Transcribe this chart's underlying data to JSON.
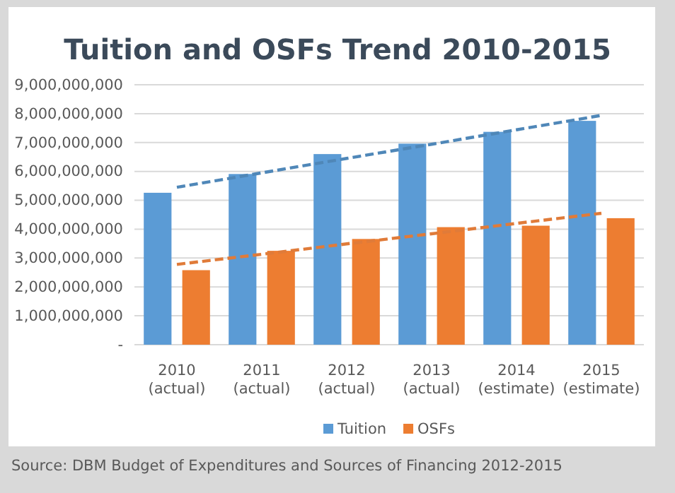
{
  "chart_data": {
    "type": "bar",
    "title": "Tuition and OSFs Trend 2010-2015",
    "categories": [
      "2010 (actual)",
      "2011 (actual)",
      "2012 (actual)",
      "2013 (actual)",
      "2014 (estimate)",
      "2015 (estimate)"
    ],
    "series": [
      {
        "name": "Tuition",
        "color": "#5b9bd5",
        "values": [
          5260000000,
          5910000000,
          6600000000,
          6960000000,
          7370000000,
          7750000000
        ]
      },
      {
        "name": "OSFs",
        "color": "#ed7d31",
        "values": [
          2580000000,
          3250000000,
          3660000000,
          4070000000,
          4120000000,
          4380000000
        ]
      },
      {
        "type": "line",
        "color": "#4f87b8",
        "line_style": "dashed",
        "values": [
          5450000000,
          5950000000,
          6450000000,
          6940000000,
          7440000000,
          7940000000
        ]
      },
      {
        "type": "line",
        "color": "#e07b39",
        "line_style": "dashed",
        "values": [
          2780000000,
          3130000000,
          3490000000,
          3840000000,
          4200000000,
          4550000000
        ]
      }
    ],
    "ylim": [
      0,
      9000000000
    ],
    "yticks": [
      {
        "value": 0,
        "label": "-"
      },
      {
        "value": 1000000000,
        "label": "1,000,000,000"
      },
      {
        "value": 2000000000,
        "label": "2,000,000,000"
      },
      {
        "value": 3000000000,
        "label": "3,000,000,000"
      },
      {
        "value": 4000000000,
        "label": "4,000,000,000"
      },
      {
        "value": 5000000000,
        "label": "5,000,000,000"
      },
      {
        "value": 6000000000,
        "label": "6,000,000,000"
      },
      {
        "value": 7000000000,
        "label": "7,000,000,000"
      },
      {
        "value": 8000000000,
        "label": "8,000,000,000"
      },
      {
        "value": 9000000000,
        "label": "9,000,000,000"
      }
    ],
    "grid": "y",
    "legend": "bottom",
    "annotations": [
      "Source: DBM Budget of Expenditures and Sources of Financing 2012-2015"
    ]
  }
}
